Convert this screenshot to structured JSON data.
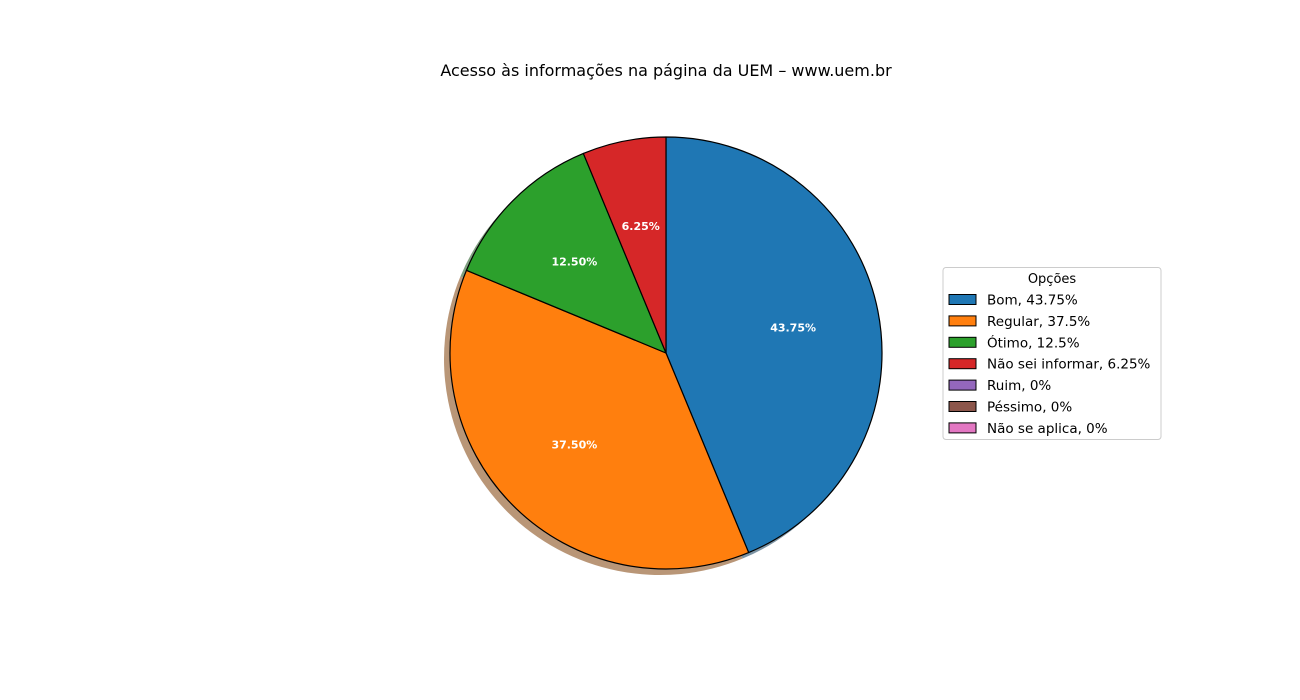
{
  "chart_data": {
    "type": "pie",
    "title": "Acesso às informações na página da UEM – www.uem.br",
    "shadow": true,
    "start_angle_deg": 90,
    "direction": "clockwise",
    "slices": [
      {
        "name": "Bom",
        "value": 43.75,
        "label": "43.75%",
        "color": "#1f77b4"
      },
      {
        "name": "Regular",
        "value": 37.5,
        "label": "37.50%",
        "color": "#ff7f0e"
      },
      {
        "name": "Ótimo",
        "value": 12.5,
        "label": "12.50%",
        "color": "#2ca02c"
      },
      {
        "name": "Não sei informar",
        "value": 6.25,
        "label": "6.25%",
        "color": "#d62728"
      },
      {
        "name": "Ruim",
        "value": 0,
        "label": "",
        "color": "#9467bd"
      },
      {
        "name": "Péssimo",
        "value": 0,
        "label": "",
        "color": "#8c564b"
      },
      {
        "name": "Não se aplica",
        "value": 0,
        "label": "",
        "color": "#e377c2"
      }
    ],
    "legend": {
      "title": "Opções",
      "placement": "right",
      "entries": [
        "Bom, 43.75%",
        "Regular, 37.5%",
        "Ótimo, 12.5%",
        "Não sei informar, 6.25%",
        "Ruim, 0%",
        "Péssimo, 0%",
        "Não se aplica, 0%"
      ]
    }
  }
}
